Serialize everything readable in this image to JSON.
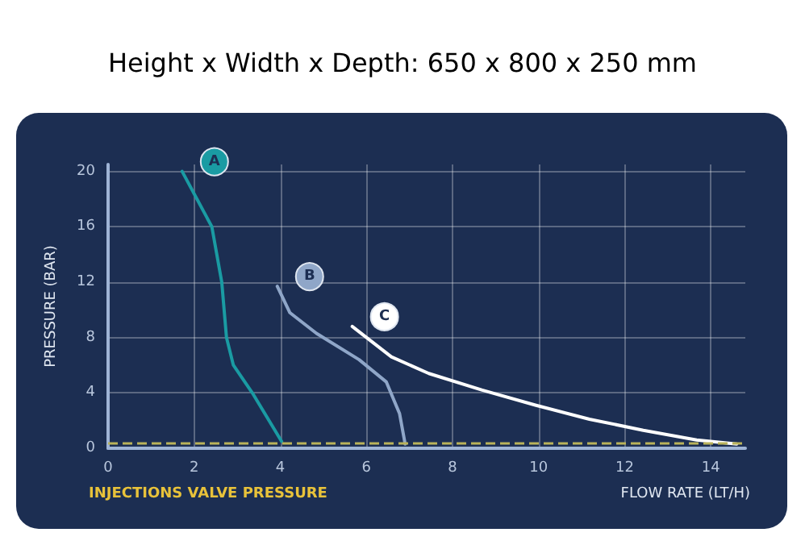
{
  "chart_data": {
    "type": "line",
    "title": "Height x Width x Depth: 650 x 800 x 250 mm",
    "xlabel": "FLOW RATE (LT/H)",
    "ylabel": "PRESSURE (BAR)",
    "xlim": [
      0,
      14.8
    ],
    "xticks": [
      0,
      2,
      4,
      6,
      8,
      10,
      12,
      14
    ],
    "ylim": [
      0,
      20.5
    ],
    "yticks": [
      0,
      4,
      8,
      12,
      16,
      20
    ],
    "grid": true,
    "marker": "none",
    "line_style": "solid",
    "series": [
      {
        "name": "A",
        "color": "#1a9ba3",
        "x": [
          1.72,
          2.41,
          2.64,
          2.75,
          2.91,
          3.35,
          4.03
        ],
        "values": [
          20,
          16,
          12,
          8,
          6,
          4,
          0.5
        ]
      },
      {
        "name": "B",
        "color": "#8fa6c8",
        "x": [
          3.93,
          4.22,
          4.84,
          5.83,
          6.46,
          6.77,
          6.9
        ],
        "values": [
          11.7,
          9.8,
          8.3,
          6.4,
          4.8,
          2.5,
          0.3
        ]
      },
      {
        "name": "C",
        "color": "#ffffff",
        "x": [
          5.67,
          6.58,
          7.45,
          8.69,
          9.94,
          11.18,
          12.43,
          13.67,
          14.6
        ],
        "values": [
          8.8,
          6.6,
          5.4,
          4.2,
          3.1,
          2.1,
          1.3,
          0.6,
          0.3
        ]
      }
    ],
    "ref_lines": [
      {
        "axis": "y",
        "value": 0.4,
        "label": "INJECTIONS VALVE PRESSURE",
        "color": "#b9b25a",
        "line_style": "dashed"
      }
    ]
  }
}
